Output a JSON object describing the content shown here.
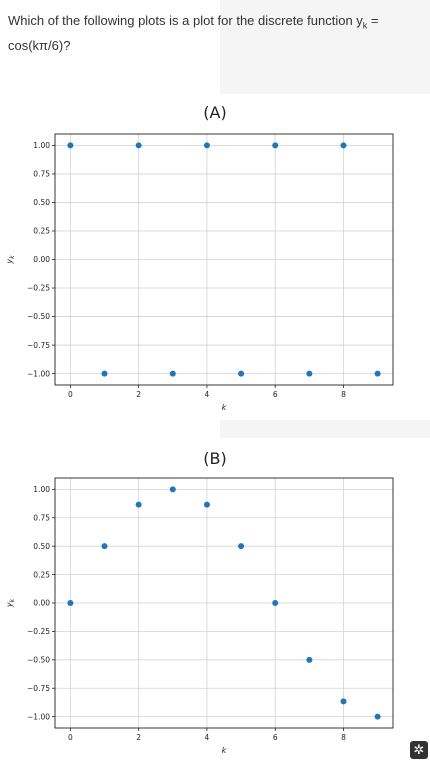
{
  "question": {
    "text_before": "Which of the following plots is a plot for the discrete function y",
    "subscript": "k",
    "text_after": " = cos(kπ/6)?"
  },
  "chart_data": [
    {
      "type": "scatter",
      "title": "(A)",
      "xlabel": "k",
      "ylabel": "yk",
      "x": [
        0,
        1,
        2,
        3,
        4,
        5,
        6,
        7,
        8,
        9
      ],
      "y": [
        1,
        -1,
        1,
        -1,
        1,
        -1,
        1,
        -1,
        1,
        -1
      ],
      "xticks": [
        0,
        2,
        4,
        6,
        8
      ],
      "yticks": [
        1.0,
        0.75,
        0.5,
        0.25,
        0.0,
        -0.25,
        -0.5,
        -0.75,
        -1.0
      ],
      "ytick_labels": [
        "1.00",
        "0.75",
        "0.50",
        "0.25",
        "0.00",
        "−0.25",
        "−0.50",
        "−0.75",
        "−1.00"
      ],
      "xlim": [
        -0.45,
        9.45
      ],
      "ylim": [
        -1.1,
        1.1
      ],
      "grid": true,
      "marker_color": "#1f77b4"
    },
    {
      "type": "scatter",
      "title": "(B)",
      "xlabel": "k",
      "ylabel": "yk",
      "x": [
        0,
        1,
        2,
        3,
        4,
        5,
        6,
        7,
        8,
        9
      ],
      "y": [
        0,
        0.5,
        0.866,
        1.0,
        0.866,
        0.5,
        0.0,
        -0.5,
        -0.866,
        -1.0
      ],
      "xticks": [
        0,
        2,
        4,
        6,
        8
      ],
      "yticks": [
        1.0,
        0.75,
        0.5,
        0.25,
        0.0,
        -0.25,
        -0.5,
        -0.75,
        -1.0
      ],
      "ytick_labels": [
        "1.00",
        "0.75",
        "0.50",
        "0.25",
        "0.00",
        "−0.25",
        "−0.50",
        "−0.75",
        "−1.00"
      ],
      "xlim": [
        -0.45,
        9.45
      ],
      "ylim": [
        -1.1,
        1.1
      ],
      "grid": true,
      "marker_color": "#1f77b4"
    }
  ],
  "icons": {
    "corner": "puzzle-icon"
  }
}
